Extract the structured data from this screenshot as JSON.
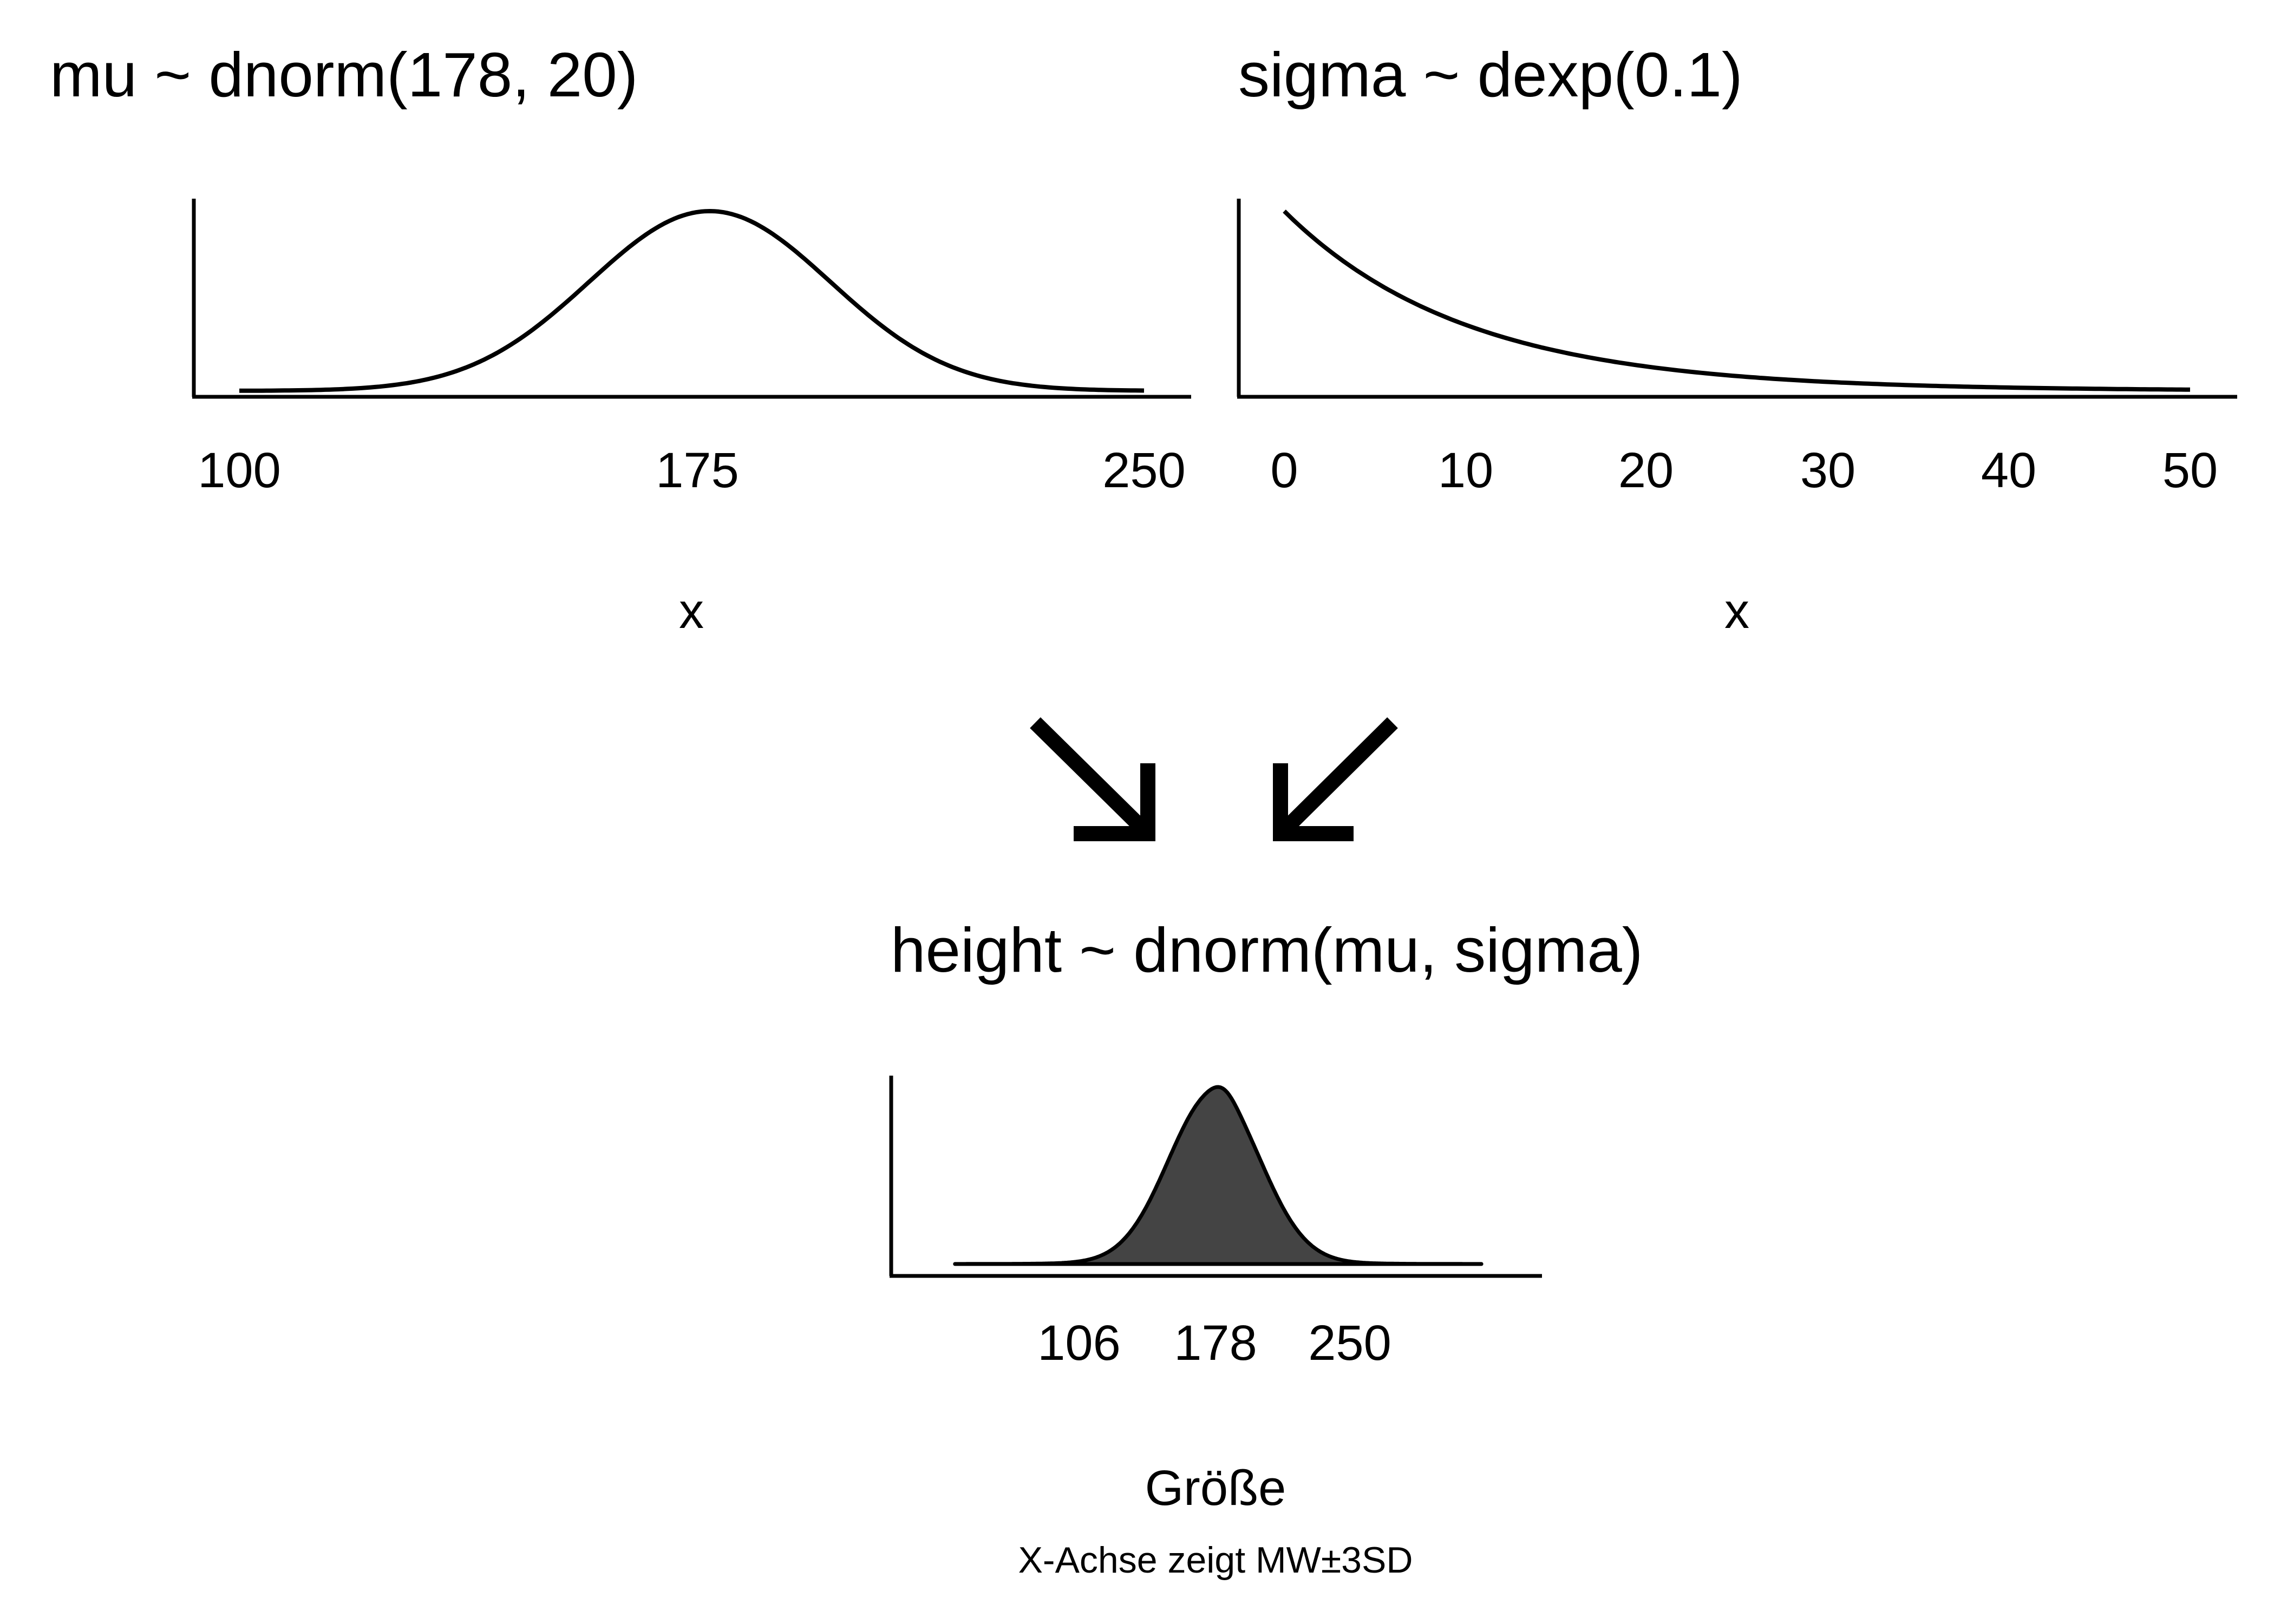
{
  "colors": {
    "line": "#000000",
    "fill": "#444444",
    "background": "#ffffff"
  },
  "panels": {
    "mu": {
      "title": "mu ~ dnorm(178, 20)",
      "xlabel": "x",
      "ticks": [
        "100",
        "175",
        "250"
      ],
      "tick_values": [
        100,
        175,
        250
      ],
      "distribution": {
        "type": "normal",
        "mean": 178,
        "sd": 20
      },
      "xlim": [
        100,
        250
      ]
    },
    "sigma": {
      "title": "sigma ~ dexp(0.1)",
      "xlabel": "x",
      "ticks": [
        "0",
        "10",
        "20",
        "30",
        "40",
        "50"
      ],
      "tick_values": [
        0,
        10,
        20,
        30,
        40,
        50
      ],
      "distribution": {
        "type": "exponential",
        "rate": 0.1
      },
      "xlim": [
        0,
        50
      ]
    },
    "height": {
      "title": "height ~ dnorm(mu, sigma)",
      "xlabel": "Größe",
      "ticks": [
        "106",
        "178",
        "250"
      ],
      "tick_values": [
        106,
        178,
        250
      ],
      "distribution": {
        "type": "density",
        "center": 178,
        "sd": 24
      },
      "xlim": [
        40,
        320
      ]
    }
  },
  "arrows": [
    {
      "name": "arrow-down-right",
      "direction": "down-right"
    },
    {
      "name": "arrow-down-left",
      "direction": "down-left"
    }
  ],
  "caption": "X-Achse zeigt MW±3SD"
}
